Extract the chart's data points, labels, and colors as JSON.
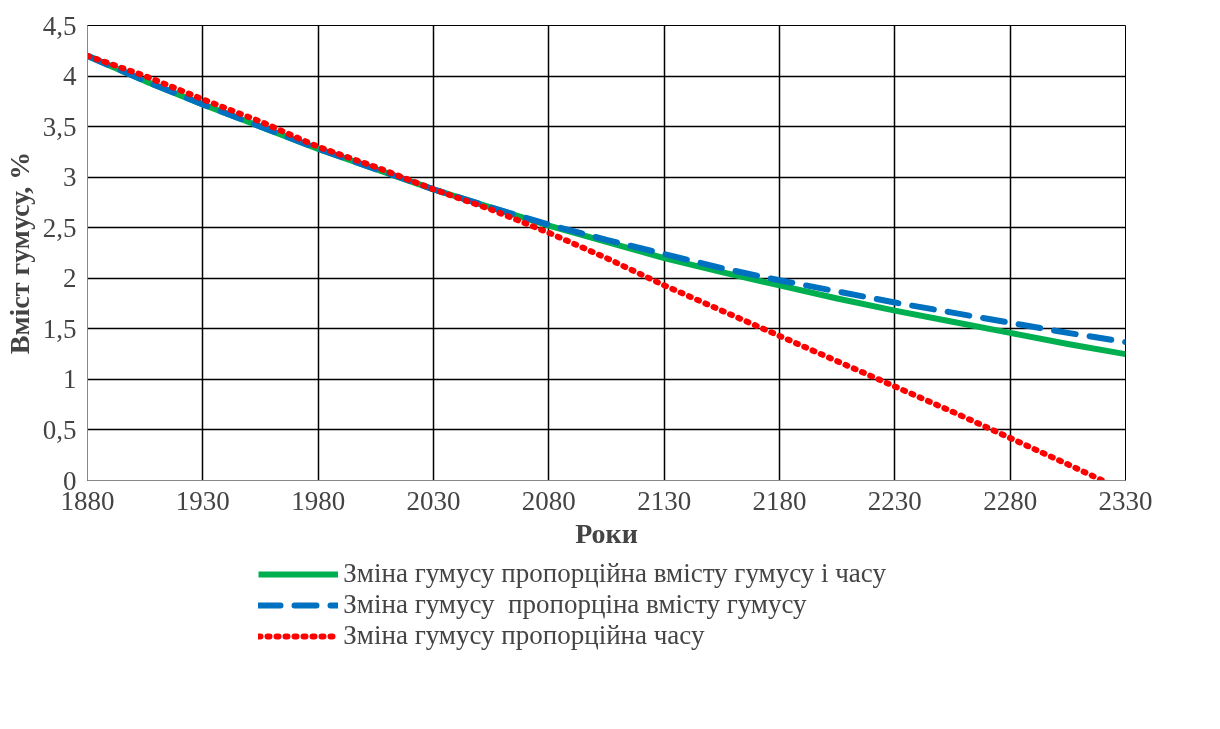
{
  "chart_data": {
    "type": "line",
    "xlabel": "Роки",
    "ylabel": "Вміст гумусу, %",
    "xlim": [
      1880,
      2330
    ],
    "xticks": [
      1880,
      1930,
      1980,
      2030,
      2080,
      2130,
      2180,
      2230,
      2280,
      2330
    ],
    "ylim": [
      0,
      4.5
    ],
    "yticks": [
      {
        "value": 0,
        "label": "0"
      },
      {
        "value": 0.5,
        "label": "0,5"
      },
      {
        "value": 1,
        "label": "1"
      },
      {
        "value": 1.5,
        "label": "1,5"
      },
      {
        "value": 2,
        "label": "2"
      },
      {
        "value": 2.5,
        "label": "2,5"
      },
      {
        "value": 3,
        "label": "3"
      },
      {
        "value": 3.5,
        "label": "3,5"
      },
      {
        "value": 4,
        "label": "4"
      },
      {
        "value": 4.5,
        "label": "4,5"
      }
    ],
    "grid": true,
    "legend": "bottom",
    "marker": "none",
    "series": [
      {
        "name": "Зміна гумусу пропорційна вмісту гумусу і часу",
        "color": "#00b050",
        "line_style": "solid",
        "x": [
          1880,
          1905,
          1930,
          1955,
          1980,
          2005,
          2030,
          2055,
          2080,
          2105,
          2130,
          2155,
          2180,
          2205,
          2230,
          2255,
          2280,
          2305,
          2330
        ],
        "values": [
          4.2,
          3.95,
          3.72,
          3.5,
          3.28,
          3.08,
          2.88,
          2.7,
          2.52,
          2.36,
          2.2,
          2.06,
          1.93,
          1.8,
          1.68,
          1.57,
          1.46,
          1.35,
          1.25
        ]
      },
      {
        "name": "Зміна гумусу  пропорціна вмісту гумусу",
        "color": "#0070c0",
        "line_style": "dashed",
        "x": [
          1880,
          1905,
          1930,
          1955,
          1980,
          2005,
          2030,
          2055,
          2080,
          2105,
          2130,
          2155,
          2180,
          2205,
          2230,
          2255,
          2280,
          2305,
          2330
        ],
        "values": [
          4.2,
          3.95,
          3.72,
          3.5,
          3.28,
          3.08,
          2.88,
          2.7,
          2.53,
          2.38,
          2.24,
          2.1,
          1.98,
          1.87,
          1.76,
          1.66,
          1.56,
          1.46,
          1.37
        ]
      },
      {
        "name": "Зміна гумусу пропорційна часу",
        "color": "#ff0000",
        "line_style": "dotted",
        "x": [
          1880,
          1905,
          1930,
          1955,
          1980,
          2005,
          2030,
          2055,
          2080,
          2105,
          2130,
          2155,
          2180,
          2205,
          2230,
          2255,
          2280,
          2305,
          2320
        ],
        "values": [
          4.2,
          4.0,
          3.77,
          3.55,
          3.3,
          3.1,
          2.88,
          2.68,
          2.45,
          2.2,
          1.93,
          1.68,
          1.43,
          1.18,
          0.93,
          0.68,
          0.42,
          0.16,
          0
        ]
      }
    ]
  }
}
